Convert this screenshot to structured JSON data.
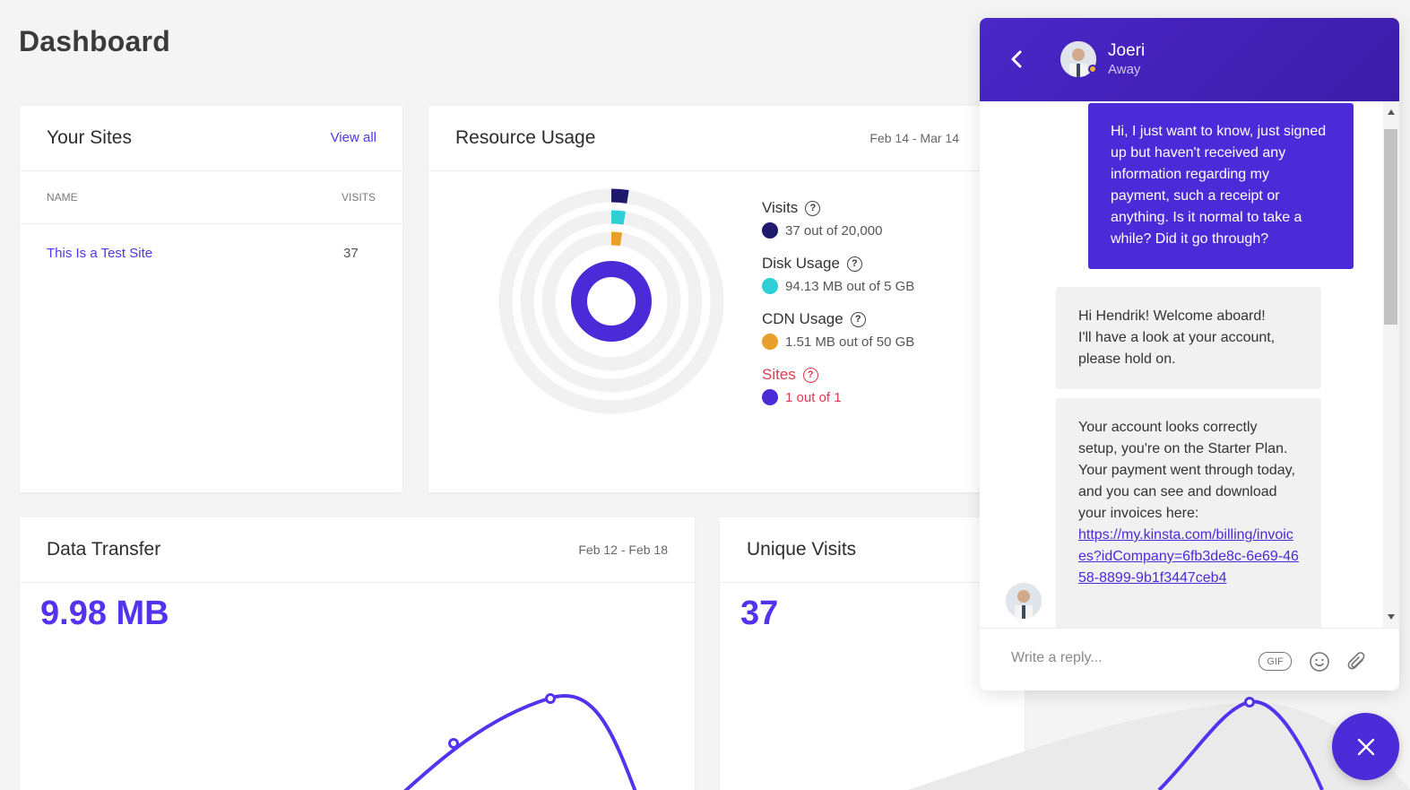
{
  "page": {
    "title": "Dashboard"
  },
  "sites_card": {
    "title": "Your Sites",
    "view_all": "View all",
    "columns": [
      "NAME",
      "VISITS"
    ],
    "rows": [
      {
        "name": "This Is a Test Site",
        "visits": "37"
      }
    ]
  },
  "resource_card": {
    "title": "Resource Usage",
    "date_range": "Feb 14 - Mar 14",
    "items": [
      {
        "label": "Visits",
        "value": "37 out of 20,000",
        "color": "#1f1a6e",
        "fraction": 0.00185
      },
      {
        "label": "Disk Usage",
        "value": "94.13 MB out of 5 GB",
        "color": "#2ccfd6",
        "fraction": 0.018
      },
      {
        "label": "CDN Usage",
        "value": "1.51 MB out of 50 GB",
        "color": "#e8a02a",
        "fraction": 3e-05
      },
      {
        "label": "Sites",
        "value": "1 out of 1",
        "color": "#4b2ad8",
        "fraction": 1.0
      }
    ],
    "alert_color": "#e2384d"
  },
  "transfer_card": {
    "title": "Data Transfer",
    "date_range": "Feb 12 - Feb 18",
    "total": "9.98 MB"
  },
  "unique_card": {
    "title": "Unique Visits",
    "total": "37"
  },
  "chat": {
    "agent_name": "Joeri",
    "agent_status": "Away",
    "messages": [
      {
        "from": "user",
        "text": "Hi, I just want to know, just signed up but haven't received any information regarding my payment, such a receipt or anything. Is it normal to take a while? Did it go through?"
      },
      {
        "from": "agent",
        "lines": [
          "Hi Hendrik! Welcome aboard!",
          "I'll have a look at your account, please hold on."
        ]
      },
      {
        "from": "agent",
        "text": "Your account looks correctly setup, you're on the Starter Plan. Your payment went through today, and you can see and download your invoices here:",
        "link": "https://my.kinsta.com/billing/invoices?idCompany=6fb3de8c-6e69-4658-8899-9b1f3447ceb4"
      }
    ],
    "reply_placeholder": "Write a reply...",
    "gif_label": "GIF"
  },
  "colors": {
    "accent": "#5333ed",
    "chat_header": "#4020b8"
  }
}
